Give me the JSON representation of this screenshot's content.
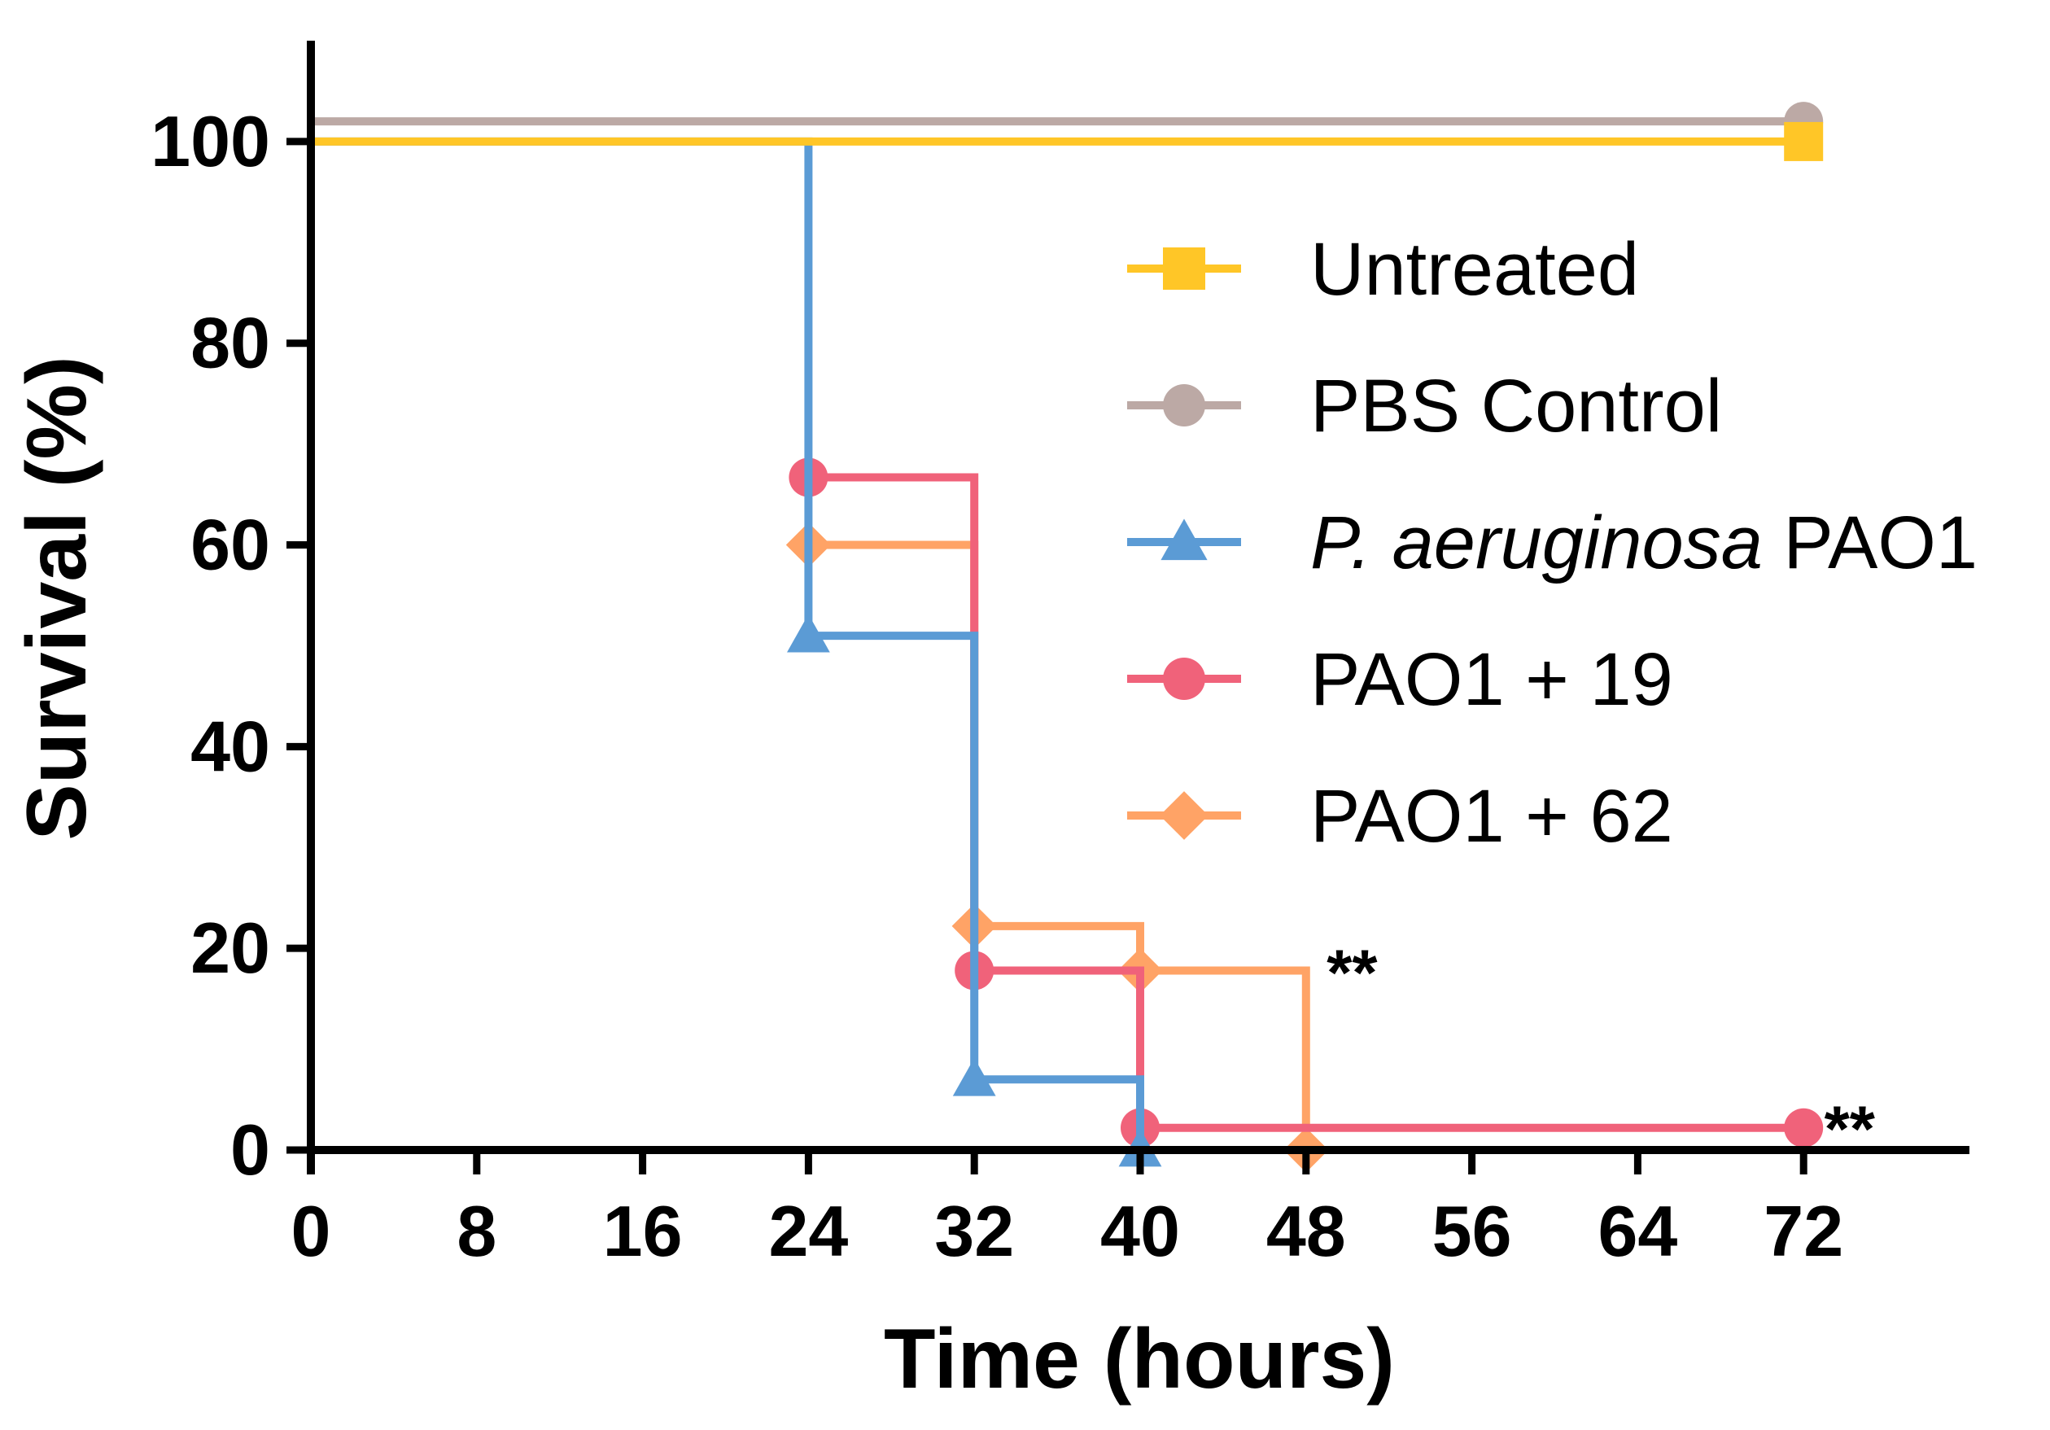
{
  "chart_data": {
    "type": "line",
    "step": true,
    "title": "",
    "xlabel": "Time (hours)",
    "ylabel": "Survival (%)",
    "xlim": [
      0,
      80
    ],
    "ylim": [
      0,
      110
    ],
    "xticks": [
      0,
      8,
      16,
      24,
      32,
      40,
      48,
      56,
      64,
      72
    ],
    "yticks": [
      0,
      20,
      40,
      60,
      80,
      100
    ],
    "grid": false,
    "legend_position": "right",
    "series": [
      {
        "name": "Untreated",
        "italic_prefix": "",
        "label_rest": "Untreated",
        "color": "#FFC627",
        "marker": "square",
        "x": [
          0,
          72
        ],
        "y": [
          100,
          100
        ],
        "marker_x": [
          72
        ],
        "marker_y": [
          100
        ]
      },
      {
        "name": "PBS Control",
        "italic_prefix": "",
        "label_rest": "PBS Control",
        "color": "#BCA9A5",
        "marker": "circle",
        "x": [
          0,
          72
        ],
        "y": [
          102,
          102
        ],
        "marker_x": [
          72
        ],
        "marker_y": [
          102
        ]
      },
      {
        "name": "P. aeruginosa PAO1",
        "italic_prefix": "P. aeruginosa",
        "label_rest": " PAO1",
        "color": "#5B9BD5",
        "marker": "triangle",
        "x": [
          0,
          24,
          32,
          40
        ],
        "y": [
          100,
          51,
          7,
          0
        ],
        "marker_x": [
          24,
          32,
          40
        ],
        "marker_y": [
          51,
          7,
          0
        ]
      },
      {
        "name": "PAO1 + 19",
        "italic_prefix": "",
        "label_rest": "PAO1 + 19",
        "color": "#F0627A",
        "marker": "circle",
        "x": [
          24,
          32,
          40,
          72
        ],
        "y": [
          66.7,
          17.8,
          2.2,
          2.2
        ],
        "marker_x": [
          24,
          32,
          40,
          72
        ],
        "marker_y": [
          66.7,
          17.8,
          2.2,
          2.2
        ]
      },
      {
        "name": "PAO1 + 62",
        "italic_prefix": "",
        "label_rest": "PAO1 + 62",
        "color": "#FFA366",
        "marker": "diamond",
        "x": [
          24,
          32,
          40,
          48
        ],
        "y": [
          60,
          22.2,
          17.8,
          0
        ],
        "marker_x": [
          24,
          32,
          40,
          48
        ],
        "marker_y": [
          60,
          22.2,
          17.8,
          0
        ]
      }
    ],
    "annotations": [
      {
        "text": "**",
        "x": 49,
        "y": 17
      },
      {
        "text": "**",
        "x": 73,
        "y": 1.5
      }
    ]
  }
}
